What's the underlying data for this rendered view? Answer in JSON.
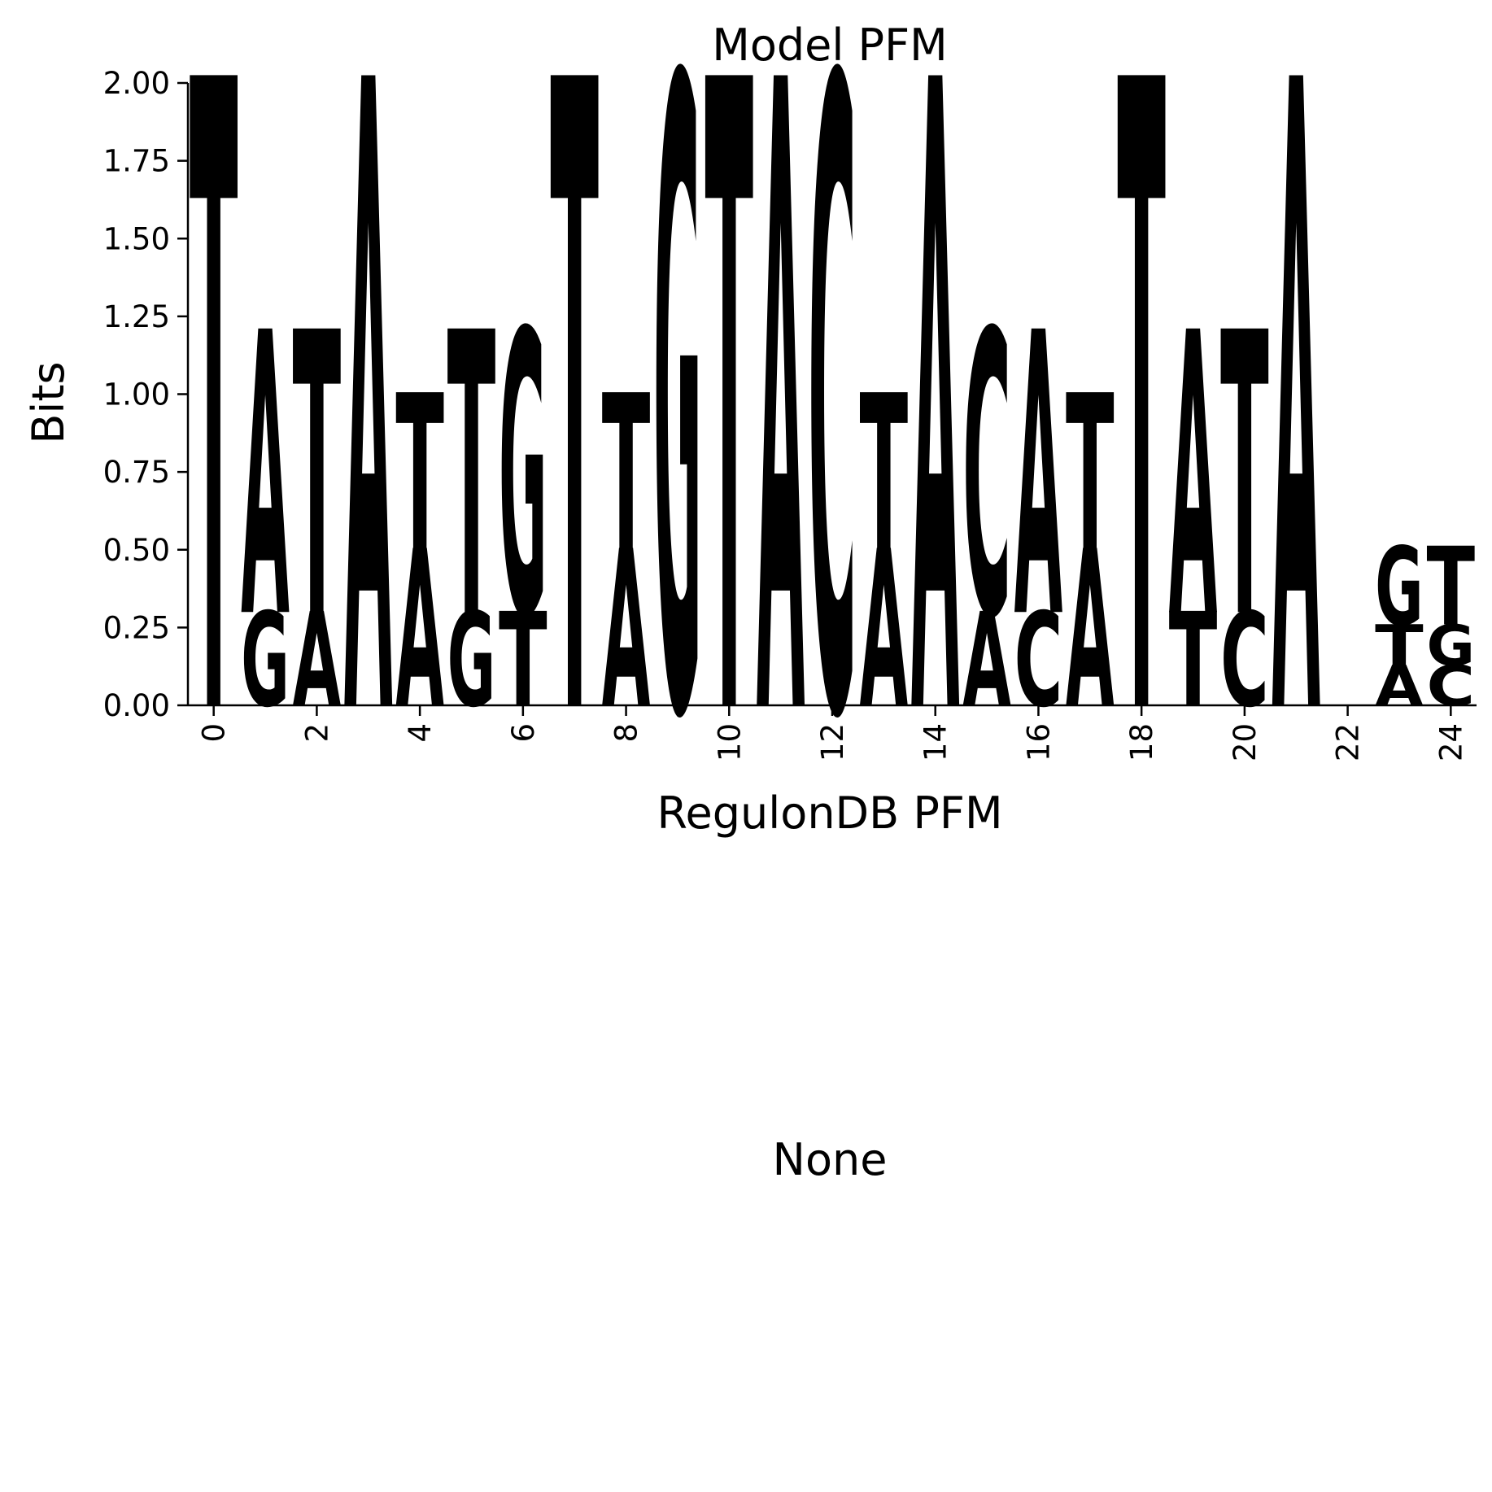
{
  "chart_data": {
    "type": "sequence-logo",
    "title": "Model PFM",
    "xlabel": "RegulonDB PFM",
    "ylabel": "Bits",
    "ylim": [
      0,
      2
    ],
    "xlim": [
      -0.5,
      24.5
    ],
    "yticks": [
      "0.00",
      "0.25",
      "0.50",
      "0.75",
      "1.00",
      "1.25",
      "1.50",
      "1.75",
      "2.00"
    ],
    "xticks": [
      "0",
      "2",
      "4",
      "6",
      "8",
      "10",
      "12",
      "14",
      "16",
      "18",
      "20",
      "22",
      "24"
    ],
    "colors": {
      "A": "#ff0000",
      "C": "#0000ff",
      "G": "#ffa500",
      "T": "#008000"
    },
    "positions": [
      {
        "pos": 0,
        "stack": [
          [
            "T",
            2.0
          ]
        ]
      },
      {
        "pos": 1,
        "stack": [
          [
            "G",
            0.3
          ],
          [
            "A",
            0.9
          ]
        ]
      },
      {
        "pos": 2,
        "stack": [
          [
            "A",
            0.3
          ],
          [
            "T",
            0.9
          ]
        ]
      },
      {
        "pos": 3,
        "stack": [
          [
            "A",
            2.0
          ]
        ]
      },
      {
        "pos": 4,
        "stack": [
          [
            "A",
            0.5
          ],
          [
            "T",
            0.5
          ]
        ]
      },
      {
        "pos": 5,
        "stack": [
          [
            "G",
            0.3
          ],
          [
            "T",
            0.9
          ]
        ]
      },
      {
        "pos": 6,
        "stack": [
          [
            "T",
            0.3
          ],
          [
            "G",
            0.9
          ]
        ]
      },
      {
        "pos": 7,
        "stack": [
          [
            "T",
            2.0
          ]
        ]
      },
      {
        "pos": 8,
        "stack": [
          [
            "A",
            0.5
          ],
          [
            "T",
            0.5
          ]
        ]
      },
      {
        "pos": 9,
        "stack": [
          [
            "G",
            2.0
          ]
        ]
      },
      {
        "pos": 10,
        "stack": [
          [
            "T",
            2.0
          ]
        ]
      },
      {
        "pos": 11,
        "stack": [
          [
            "A",
            2.0
          ]
        ]
      },
      {
        "pos": 12,
        "stack": [
          [
            "C",
            2.0
          ]
        ]
      },
      {
        "pos": 13,
        "stack": [
          [
            "A",
            0.5
          ],
          [
            "T",
            0.5
          ]
        ]
      },
      {
        "pos": 14,
        "stack": [
          [
            "A",
            2.0
          ]
        ]
      },
      {
        "pos": 15,
        "stack": [
          [
            "A",
            0.3
          ],
          [
            "C",
            0.9
          ]
        ]
      },
      {
        "pos": 16,
        "stack": [
          [
            "C",
            0.3
          ],
          [
            "A",
            0.9
          ]
        ]
      },
      {
        "pos": 17,
        "stack": [
          [
            "A",
            0.5
          ],
          [
            "T",
            0.5
          ]
        ]
      },
      {
        "pos": 18,
        "stack": [
          [
            "T",
            2.0
          ]
        ]
      },
      {
        "pos": 19,
        "stack": [
          [
            "T",
            0.3
          ],
          [
            "A",
            0.9
          ]
        ]
      },
      {
        "pos": 20,
        "stack": [
          [
            "C",
            0.3
          ],
          [
            "T",
            0.9
          ]
        ]
      },
      {
        "pos": 21,
        "stack": [
          [
            "A",
            2.0
          ]
        ]
      },
      {
        "pos": 22,
        "stack": []
      },
      {
        "pos": 23,
        "stack": [
          [
            "A",
            0.13
          ],
          [
            "T",
            0.13
          ],
          [
            "G",
            0.25
          ]
        ]
      },
      {
        "pos": 24,
        "stack": [
          [
            "C",
            0.13
          ],
          [
            "G",
            0.13
          ],
          [
            "T",
            0.25
          ]
        ]
      }
    ]
  },
  "lower_panel": {
    "title": "None"
  }
}
